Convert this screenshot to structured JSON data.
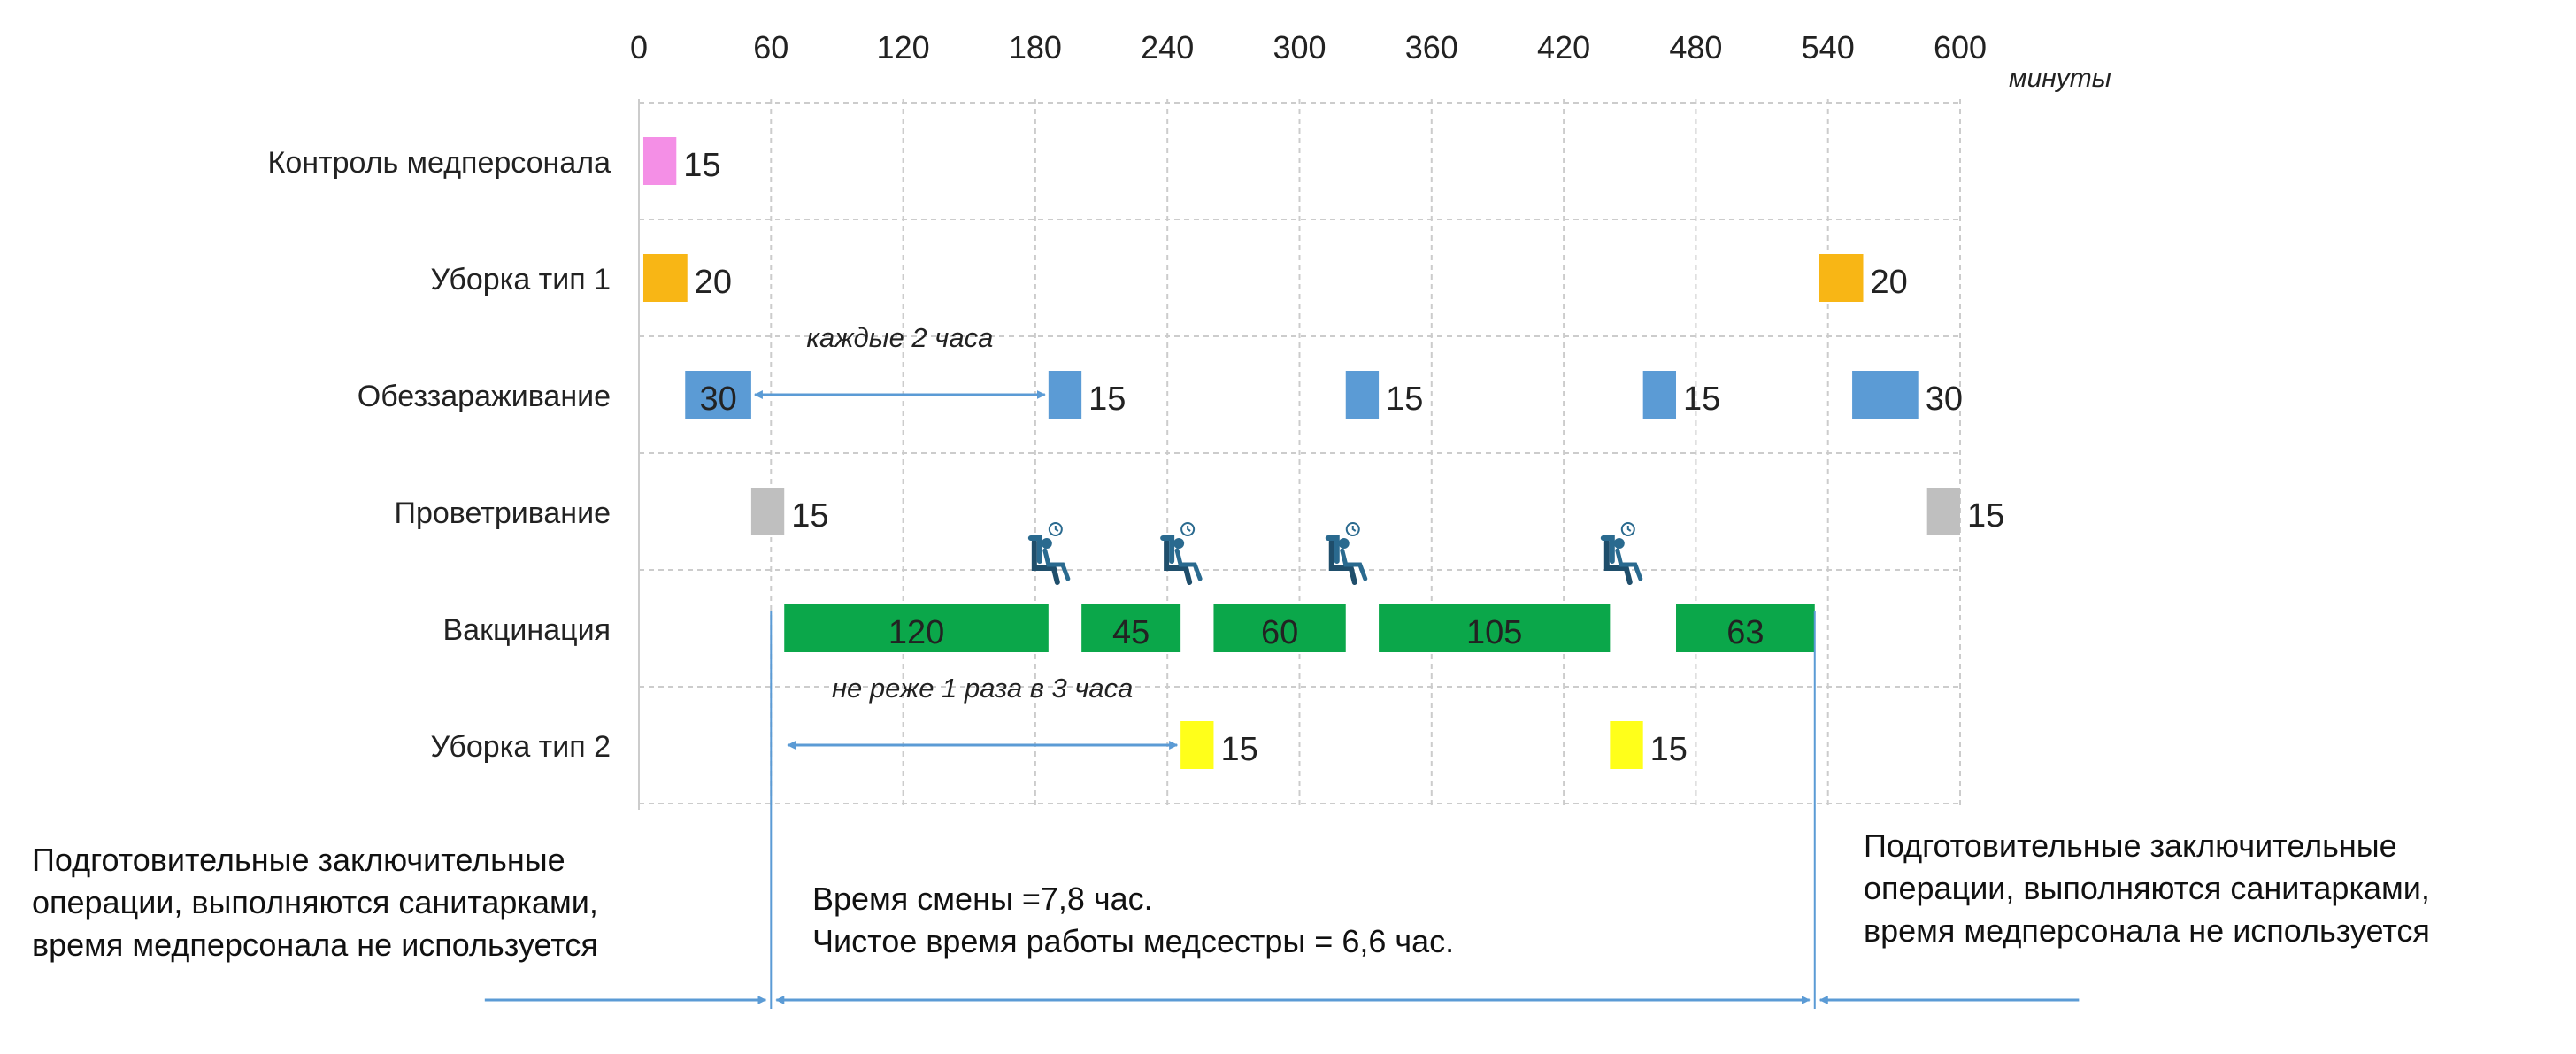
{
  "chart_data": {
    "type": "gantt",
    "x_unit": "минуты",
    "x_ticks": [
      0,
      60,
      120,
      180,
      240,
      300,
      360,
      420,
      480,
      540,
      600
    ],
    "xlim": [
      0,
      600
    ],
    "grid": true,
    "rows": [
      {
        "label": "Контроль медперсонала",
        "color": "#f48fe6",
        "tasks": [
          {
            "start": 2,
            "duration": 15,
            "label": "15",
            "label_pos": "right"
          }
        ]
      },
      {
        "label": "Уборка тип 1",
        "color": "#f8b615",
        "tasks": [
          {
            "start": 2,
            "duration": 20,
            "label": "20",
            "label_pos": "right"
          },
          {
            "start": 536,
            "duration": 20,
            "label": "20",
            "label_pos": "right"
          }
        ]
      },
      {
        "label": "Обеззараживание",
        "color": "#5b9bd5",
        "tasks": [
          {
            "start": 21,
            "duration": 30,
            "label": "30",
            "label_pos": "inside"
          },
          {
            "start": 186,
            "duration": 15,
            "label": "15",
            "label_pos": "right"
          },
          {
            "start": 321,
            "duration": 15,
            "label": "15",
            "label_pos": "right"
          },
          {
            "start": 456,
            "duration": 15,
            "label": "15",
            "label_pos": "right"
          },
          {
            "start": 551,
            "duration": 30,
            "label": "30",
            "label_pos": "right"
          }
        ]
      },
      {
        "label": "Проветривание",
        "color": "#bfbfbf",
        "tasks": [
          {
            "start": 51,
            "duration": 15,
            "label": "15",
            "label_pos": "right"
          },
          {
            "start": 585,
            "duration": 15,
            "label": "15",
            "label_pos": "right"
          }
        ]
      },
      {
        "label": "Вакцинация",
        "color": "#0ba74a",
        "tasks": [
          {
            "start": 66,
            "duration": 120,
            "label": "120",
            "label_pos": "inside"
          },
          {
            "start": 201,
            "duration": 45,
            "label": "45",
            "label_pos": "inside"
          },
          {
            "start": 261,
            "duration": 60,
            "label": "60",
            "label_pos": "inside"
          },
          {
            "start": 336,
            "duration": 105,
            "label": "105",
            "label_pos": "inside"
          },
          {
            "start": 471,
            "duration": 63,
            "label": "63",
            "label_pos": "inside"
          }
        ]
      },
      {
        "label": "Уборка тип 2",
        "color": "#ffff1a",
        "tasks": [
          {
            "start": 246,
            "duration": 15,
            "label": "15",
            "label_pos": "right"
          },
          {
            "start": 441,
            "duration": 15,
            "label": "15",
            "label_pos": "right"
          }
        ]
      }
    ],
    "icons": [
      {
        "name": "rest-chair-icon",
        "x": 186
      },
      {
        "name": "rest-chair-icon",
        "x": 246
      },
      {
        "name": "rest-chair-icon",
        "x": 321
      },
      {
        "name": "rest-chair-icon",
        "x": 446
      }
    ],
    "annotations": [
      {
        "text": "каждые 2 часа",
        "from": 51,
        "to": 186,
        "row": 2
      },
      {
        "text": "не реже 1 раза в 3 часа",
        "from": 66,
        "to": 246,
        "row": 5
      }
    ],
    "spans": [
      {
        "from": -70,
        "to": 60
      },
      {
        "from": 60,
        "to": 534
      },
      {
        "from": 534,
        "to": 654
      }
    ],
    "color_colors": {
      "grid": "#cccccc",
      "arrow": "#5b9bd5"
    }
  },
  "notes": {
    "left": [
      "Подготовительные заключительные",
      "операции, выполняются санитарками,",
      "время медперсонала не используется"
    ],
    "center": [
      "Время смены =7,8 час.",
      "Чистое время работы медсестры = 6,6 час."
    ],
    "right": [
      "Подготовительные заключительные",
      "операции, выполняются санитарками,",
      "время медперсонала не используется"
    ]
  }
}
